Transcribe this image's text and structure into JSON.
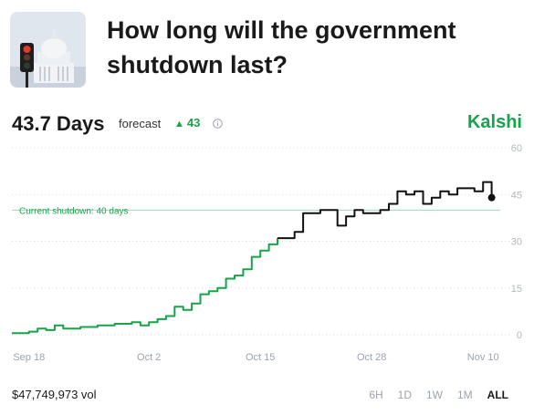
{
  "market": {
    "title": "How long will the government shutdown last?"
  },
  "summary": {
    "value": "43.7 Days",
    "label": "forecast",
    "change": "43",
    "change_color": "#16a34a"
  },
  "brand": {
    "name": "Kalshi",
    "color": "#16a34a"
  },
  "annotation": {
    "text": "Current shutdown: 40 days",
    "value": 40,
    "color": "#16a34a"
  },
  "chart_data": {
    "type": "line",
    "title": "",
    "xlabel": "",
    "ylabel": "",
    "ylim": [
      0,
      60
    ],
    "yticks": [
      0,
      15,
      30,
      45,
      60
    ],
    "x_ticks": [
      "Sep 18",
      "Oct 2",
      "Oct 15",
      "Oct 28",
      "Nov 10"
    ],
    "grid": true,
    "colors": {
      "past": "#16a34a",
      "recent": "#111111"
    },
    "series": [
      {
        "x": [
          "Sep 16",
          "Sep 18",
          "Sep 19",
          "Sep 20",
          "Sep 21",
          "Sep 22",
          "Sep 24",
          "Sep 26",
          "Sep 28",
          "Sep 30",
          "Oct 1",
          "Oct 2",
          "Oct 3",
          "Oct 4",
          "Oct 5",
          "Oct 6",
          "Oct 7",
          "Oct 8",
          "Oct 9",
          "Oct 10",
          "Oct 11",
          "Oct 12",
          "Oct 13",
          "Oct 14",
          "Oct 15",
          "Oct 16",
          "Oct 17",
          "Oct 18",
          "Oct 19",
          "Oct 20",
          "Oct 21",
          "Oct 22",
          "Oct 23",
          "Oct 24",
          "Oct 25",
          "Oct 26",
          "Oct 27",
          "Oct 28",
          "Oct 29",
          "Oct 30",
          "Oct 31",
          "Nov 1",
          "Nov 2",
          "Nov 3",
          "Nov 4",
          "Nov 5",
          "Nov 6",
          "Nov 7",
          "Nov 8",
          "Nov 9",
          "Nov 10",
          "Nov 11"
        ],
        "values": [
          0.5,
          1,
          2,
          1.5,
          3,
          2,
          2.5,
          3,
          3.5,
          4,
          3,
          4,
          5,
          6,
          9,
          8,
          10,
          13,
          14,
          15,
          18,
          19,
          21,
          25,
          27,
          29,
          31,
          31,
          33,
          39,
          39,
          40,
          40,
          35,
          38,
          40,
          39,
          39,
          40,
          42,
          46,
          45,
          46,
          42,
          44,
          46,
          45,
          47,
          47,
          46,
          49,
          44
        ]
      }
    ],
    "recent_from_index": 26
  },
  "volume": "$47,749,973 vol",
  "ranges": [
    {
      "label": "6H",
      "active": false
    },
    {
      "label": "1D",
      "active": false
    },
    {
      "label": "1W",
      "active": false
    },
    {
      "label": "1M",
      "active": false
    },
    {
      "label": "ALL",
      "active": true
    }
  ]
}
